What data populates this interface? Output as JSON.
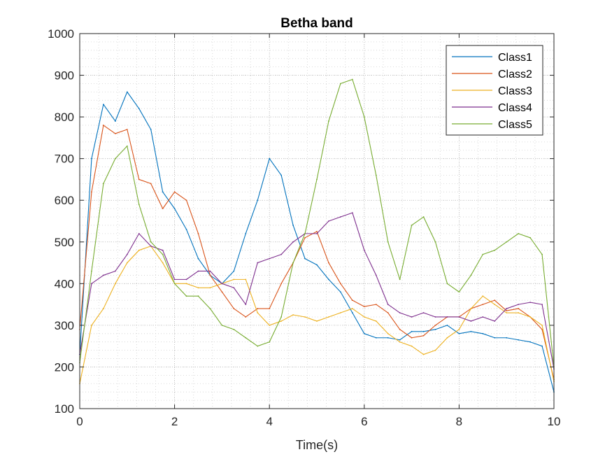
{
  "chart_data": {
    "type": "line",
    "title": "Betha band",
    "xlabel": "Time(s)",
    "ylabel": "",
    "xlim": [
      0,
      10
    ],
    "ylim": [
      100,
      1000
    ],
    "x_ticks": [
      "0",
      "2",
      "4",
      "6",
      "8",
      "10"
    ],
    "y_ticks": [
      "100",
      "200",
      "300",
      "400",
      "500",
      "600",
      "700",
      "800",
      "900",
      "1000"
    ],
    "grid": true,
    "minor_grid": true,
    "legend_position": "top-right",
    "x": [
      0,
      0.25,
      0.5,
      0.75,
      1,
      1.25,
      1.5,
      1.75,
      2,
      2.25,
      2.5,
      2.75,
      3,
      3.25,
      3.5,
      3.75,
      4,
      4.25,
      4.5,
      4.75,
      5,
      5.25,
      5.5,
      5.75,
      6,
      6.25,
      6.5,
      6.75,
      7,
      7.25,
      7.5,
      7.75,
      8,
      8.25,
      8.5,
      8.75,
      9,
      9.25,
      9.5,
      9.75,
      10
    ],
    "series": [
      {
        "name": "Class1",
        "color": "#0072BD",
        "values": [
          230,
          700,
          830,
          790,
          860,
          820,
          770,
          620,
          580,
          530,
          460,
          420,
          400,
          430,
          520,
          600,
          700,
          660,
          540,
          460,
          445,
          410,
          380,
          330,
          280,
          270,
          270,
          265,
          285,
          285,
          290,
          300,
          280,
          285,
          280,
          270,
          270,
          265,
          260,
          250,
          140
        ]
      },
      {
        "name": "Class2",
        "color": "#D95319",
        "values": [
          290,
          620,
          780,
          760,
          770,
          650,
          640,
          580,
          620,
          600,
          520,
          420,
          380,
          340,
          320,
          340,
          340,
          400,
          450,
          510,
          525,
          450,
          400,
          360,
          345,
          350,
          330,
          290,
          270,
          275,
          300,
          320,
          320,
          340,
          350,
          360,
          335,
          340,
          320,
          290,
          170
        ]
      },
      {
        "name": "Class3",
        "color": "#EDB120",
        "values": [
          160,
          300,
          340,
          400,
          450,
          480,
          490,
          450,
          400,
          400,
          390,
          390,
          400,
          410,
          410,
          330,
          300,
          310,
          325,
          320,
          310,
          320,
          330,
          340,
          320,
          310,
          280,
          260,
          250,
          230,
          240,
          270,
          290,
          340,
          370,
          350,
          330,
          330,
          320,
          300,
          165
        ]
      },
      {
        "name": "Class4",
        "color": "#7E2F8E",
        "values": [
          230,
          400,
          420,
          430,
          470,
          520,
          490,
          480,
          410,
          410,
          430,
          430,
          400,
          390,
          350,
          450,
          460,
          470,
          500,
          520,
          520,
          550,
          560,
          570,
          480,
          420,
          350,
          330,
          320,
          330,
          320,
          320,
          320,
          310,
          320,
          310,
          340,
          350,
          355,
          350,
          195
        ]
      },
      {
        "name": "Class5",
        "color": "#77AC30",
        "values": [
          210,
          430,
          640,
          700,
          730,
          590,
          500,
          470,
          400,
          370,
          370,
          340,
          300,
          290,
          270,
          250,
          260,
          320,
          450,
          520,
          650,
          790,
          880,
          890,
          800,
          660,
          500,
          410,
          540,
          560,
          500,
          400,
          380,
          420,
          470,
          480,
          500,
          520,
          510,
          470,
          200
        ]
      }
    ]
  }
}
